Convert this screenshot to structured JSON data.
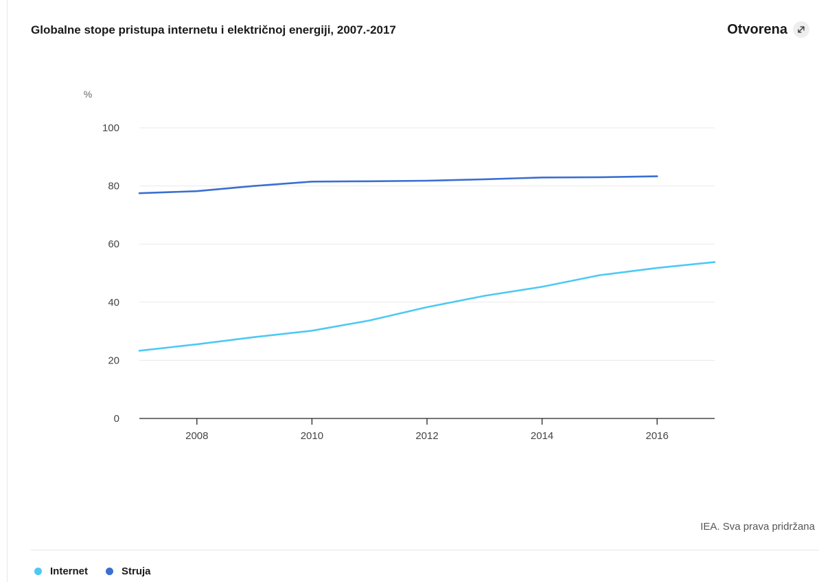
{
  "header": {
    "open_label": "Otvorena",
    "open_icon": "expand-arrow-icon"
  },
  "source_note": "IEA. Sva prava pridržana",
  "colors": {
    "internet": "#4cc9f5",
    "struja": "#3a6fd0",
    "grid": "#e8e8e8",
    "axis": "#222222"
  },
  "chart_data": {
    "type": "line",
    "title": "Globalne stope pristupa internetu i električnoj energiji, 2007.-2017",
    "ylabel": "%",
    "xlabel": "",
    "ylim": [
      0,
      100
    ],
    "xlim": [
      2007,
      2017
    ],
    "yticks": [
      0,
      20,
      40,
      60,
      80,
      100
    ],
    "xticks": [
      2008,
      2010,
      2012,
      2014,
      2016
    ],
    "grid": true,
    "legend": "bottom-left",
    "series": [
      {
        "name": "Internet",
        "x": [
          2007,
          2008,
          2009,
          2010,
          2011,
          2012,
          2013,
          2014,
          2015,
          2016,
          2017
        ],
        "values": [
          23.3,
          25.5,
          28.0,
          30.2,
          33.7,
          38.3,
          42.2,
          45.3,
          49.3,
          51.8,
          53.8
        ]
      },
      {
        "name": "Struja",
        "x": [
          2007,
          2008,
          2009,
          2010,
          2011,
          2012,
          2013,
          2014,
          2015,
          2016
        ],
        "values": [
          77.5,
          78.2,
          80.0,
          81.5,
          81.6,
          81.8,
          82.3,
          82.9,
          83.0,
          83.3
        ]
      }
    ]
  }
}
